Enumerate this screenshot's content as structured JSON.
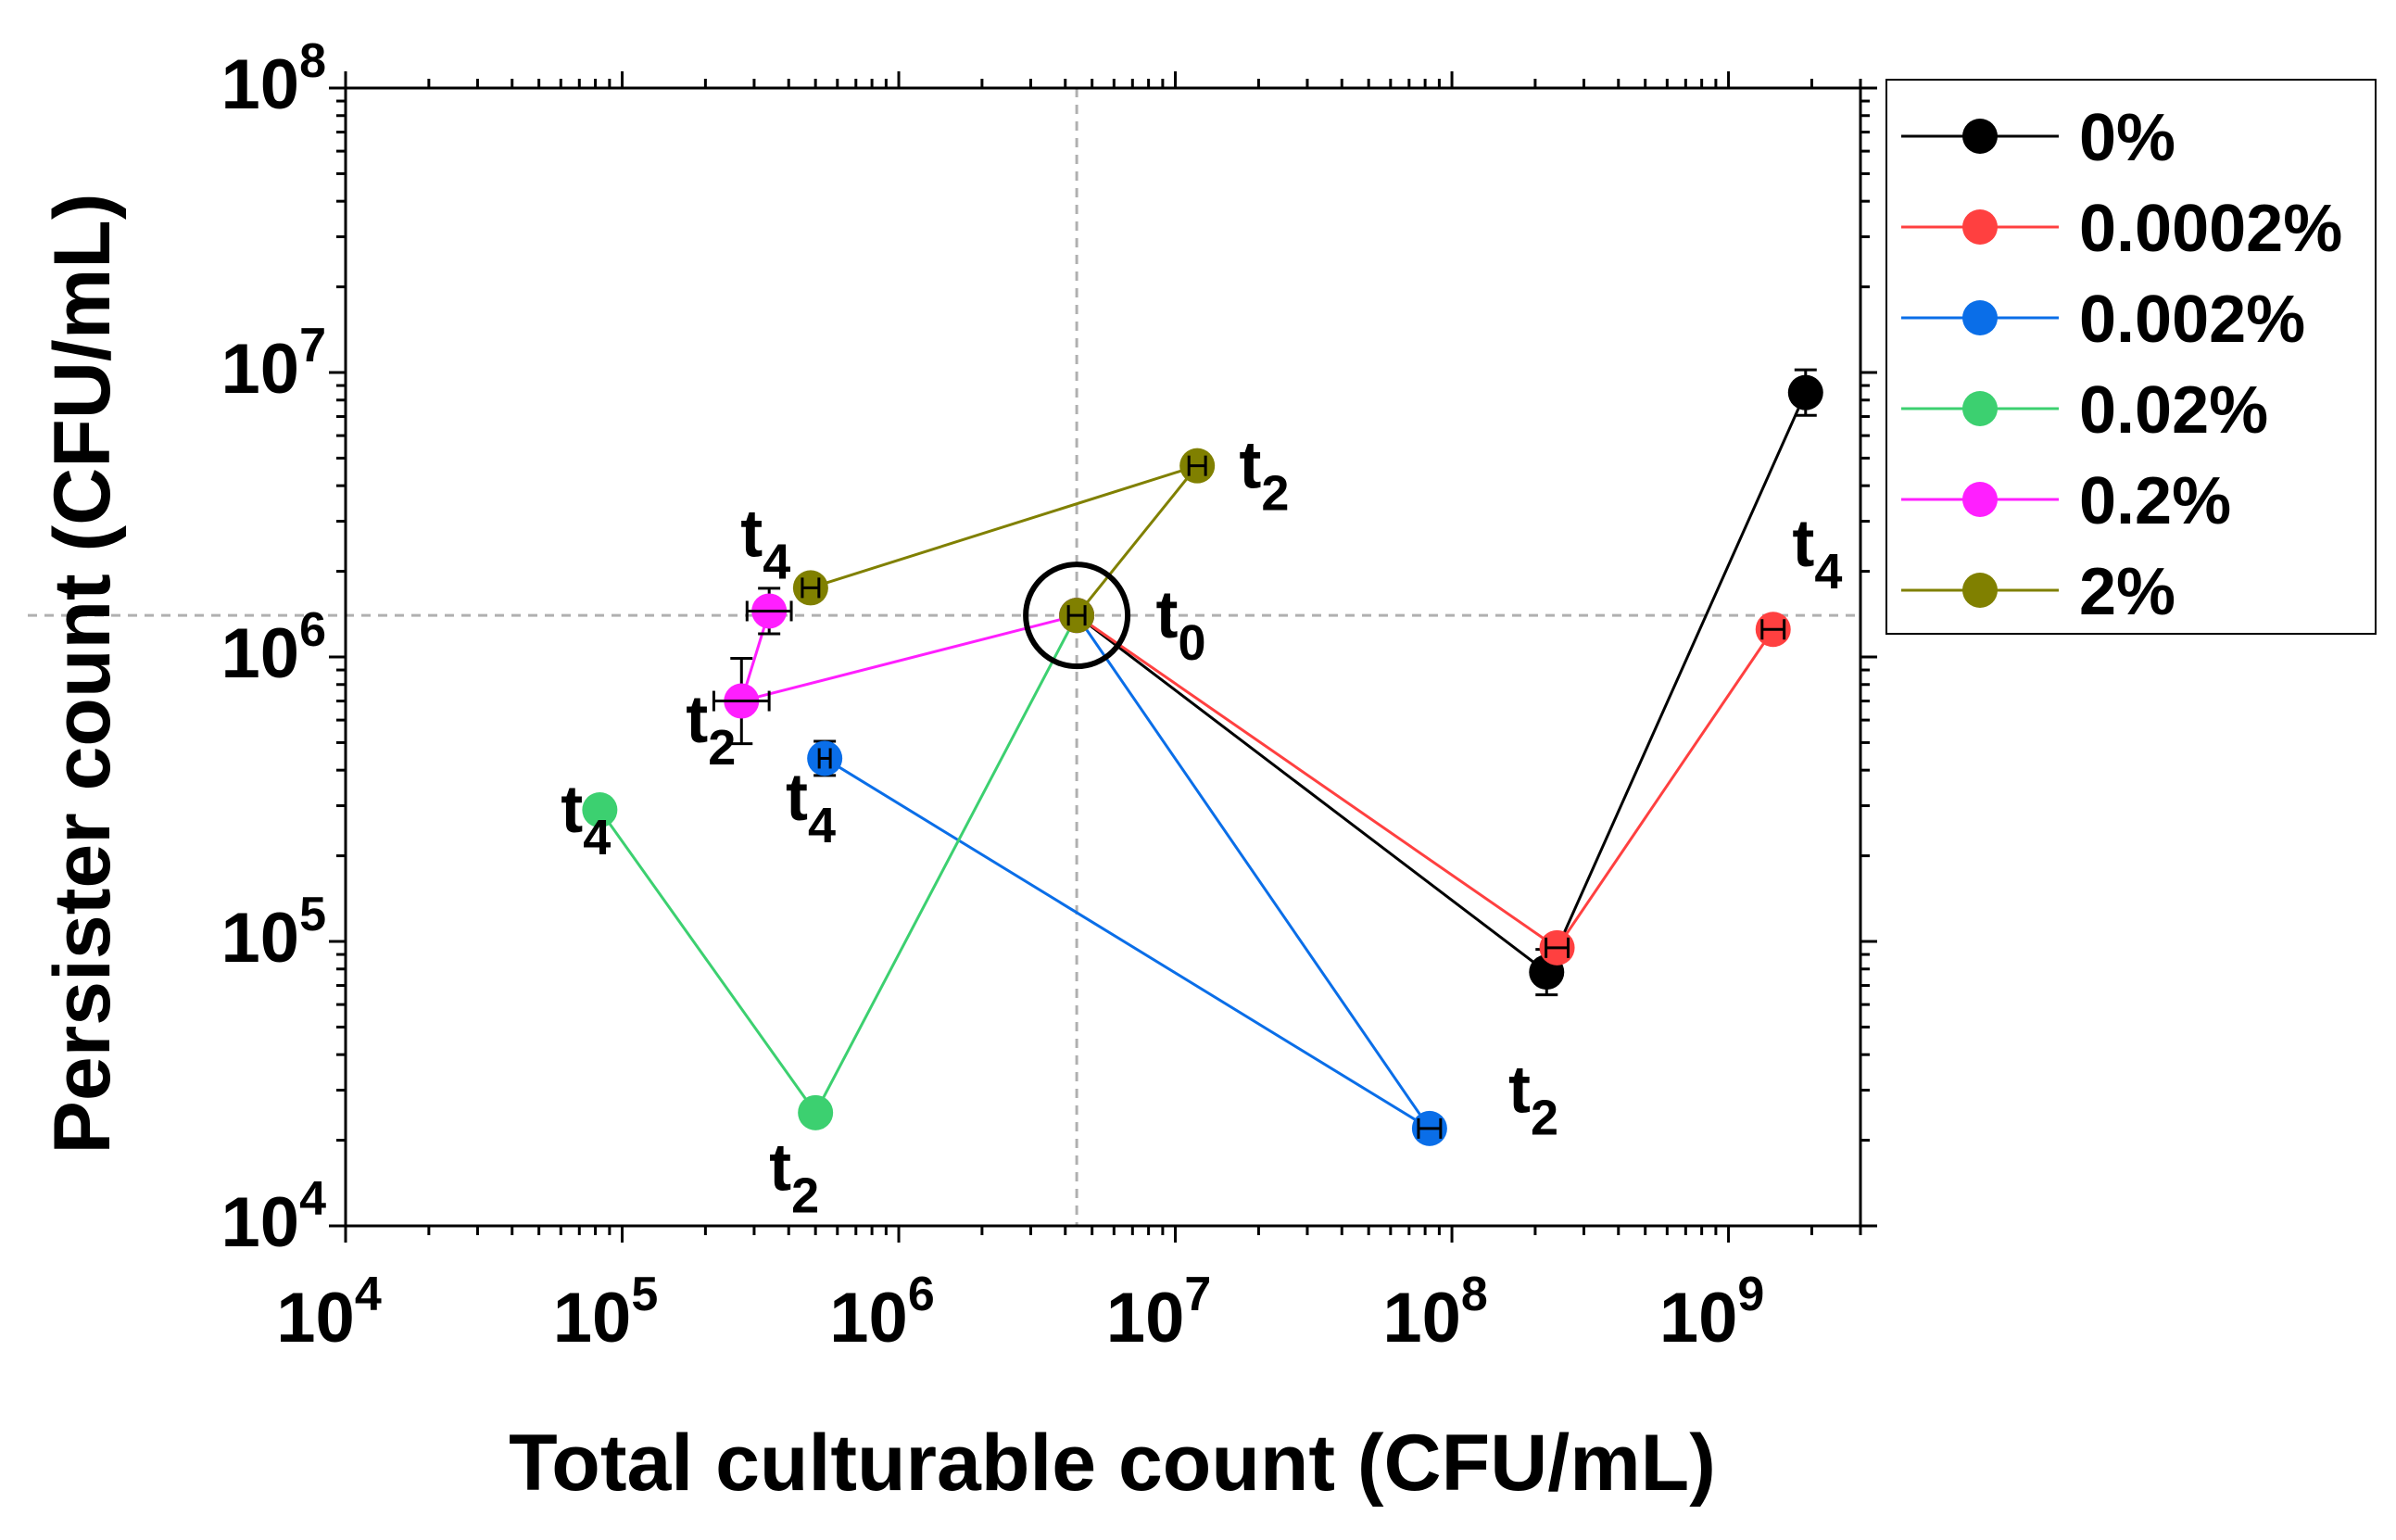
{
  "chart_data": {
    "type": "scatter",
    "title": "",
    "xlabel": "Total culturable count (CFU/mL)",
    "ylabel": "Persister count (CFU/mL)",
    "xscale": "log",
    "yscale": "log",
    "xlim": [
      10000,
      3000000000
    ],
    "ylim": [
      10000,
      100000000
    ],
    "x_ticks": [
      {
        "value": 10000,
        "base": "10",
        "exp": "4"
      },
      {
        "value": 100000,
        "base": "10",
        "exp": "5"
      },
      {
        "value": 1000000,
        "base": "10",
        "exp": "6"
      },
      {
        "value": 10000000,
        "base": "10",
        "exp": "7"
      },
      {
        "value": 100000000,
        "base": "10",
        "exp": "8"
      },
      {
        "value": 1000000000,
        "base": "10",
        "exp": "9"
      }
    ],
    "y_ticks": [
      {
        "value": 10000,
        "base": "10",
        "exp": "4"
      },
      {
        "value": 100000,
        "base": "10",
        "exp": "5"
      },
      {
        "value": 1000000,
        "base": "10",
        "exp": "6"
      },
      {
        "value": 10000000,
        "base": "10",
        "exp": "7"
      },
      {
        "value": 100000000,
        "base": "10",
        "exp": "8"
      }
    ],
    "reference_lines": {
      "x": 4400000,
      "y": 1400000
    },
    "legend_position": "outside-top-right",
    "series": [
      {
        "name": "0%",
        "color": "#000000",
        "points": [
          {
            "x": 4400000,
            "y": 1400000
          },
          {
            "x": 220000000,
            "y": 78000
          },
          {
            "x": 1900000000,
            "y": 8500000
          }
        ],
        "y_err": [
          0,
          0.08,
          0.08
        ],
        "x_err": [
          0.03,
          0.02,
          0.02
        ]
      },
      {
        "name": "0.0002%",
        "color": "#ff4040",
        "points": [
          {
            "x": 4400000,
            "y": 1400000
          },
          {
            "x": 240000000,
            "y": 95000
          },
          {
            "x": 1450000000,
            "y": 1250000
          }
        ],
        "y_err": [
          0,
          0.03,
          0.02
        ],
        "x_err": [
          0.03,
          0.04,
          0.04
        ]
      },
      {
        "name": "0.002%",
        "color": "#0a6ee8",
        "points": [
          {
            "x": 4400000,
            "y": 1400000
          },
          {
            "x": 83000000,
            "y": 22000
          },
          {
            "x": 540000,
            "y": 440000
          }
        ],
        "y_err": [
          0,
          0.03,
          0.06
        ],
        "x_err": [
          0.03,
          0.04,
          0.02
        ]
      },
      {
        "name": "0.02%",
        "color": "#3cd070",
        "points": [
          {
            "x": 4400000,
            "y": 1400000
          },
          {
            "x": 500000,
            "y": 25000
          },
          {
            "x": 83000,
            "y": 290000
          }
        ],
        "y_err": [
          0,
          0,
          0
        ],
        "x_err": [
          0.03,
          0,
          0
        ]
      },
      {
        "name": "0.2%",
        "color": "#ff1fff",
        "points": [
          {
            "x": 4400000,
            "y": 1400000
          },
          {
            "x": 270000,
            "y": 700000
          },
          {
            "x": 340000,
            "y": 1450000
          }
        ],
        "y_err": [
          0,
          0.15,
          0.08
        ],
        "x_err": [
          0.03,
          0.1,
          0.08
        ]
      },
      {
        "name": "2%",
        "color": "#808000",
        "points": [
          {
            "x": 4400000,
            "y": 1400000
          },
          {
            "x": 12000000,
            "y": 4700000
          },
          {
            "x": 480000,
            "y": 1750000
          }
        ],
        "y_err": [
          0.03,
          0,
          0
        ],
        "x_err": [
          0.03,
          0.03,
          0.03
        ]
      }
    ],
    "annotations": [
      {
        "base": "t",
        "sub": "0",
        "x": 8500000,
        "y": 1400000,
        "anchor": "start"
      },
      {
        "base": "t",
        "sub": "2",
        "x": 17000000,
        "y": 4700000,
        "anchor": "start"
      },
      {
        "base": "t",
        "sub": "4",
        "x": 330000,
        "y": 2700000,
        "anchor": "middle"
      },
      {
        "base": "t",
        "sub": "2",
        "x": 170000,
        "y": 600000,
        "anchor": "start"
      },
      {
        "base": "t",
        "sub": "4",
        "x": 390000,
        "y": 320000,
        "anchor": "start"
      },
      {
        "base": "t",
        "sub": "4",
        "x": 60000,
        "y": 290000,
        "anchor": "start"
      },
      {
        "base": "t",
        "sub": "2",
        "x": 340000,
        "y": 16000,
        "anchor": "start"
      },
      {
        "base": "t",
        "sub": "2",
        "x": 160000000,
        "y": 30000,
        "anchor": "start"
      },
      {
        "base": "t",
        "sub": "4",
        "x": 1700000000,
        "y": 2500000,
        "anchor": "start"
      }
    ]
  }
}
